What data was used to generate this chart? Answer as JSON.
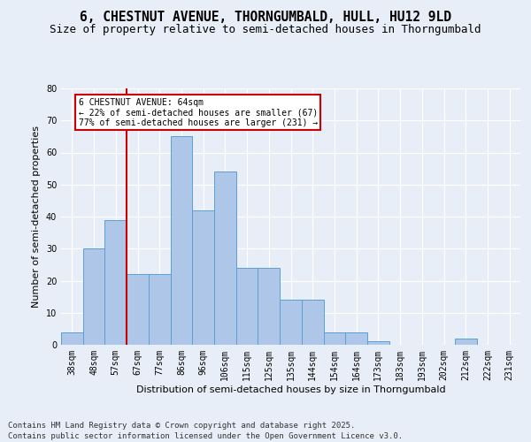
{
  "title": "6, CHESTNUT AVENUE, THORNGUMBALD, HULL, HU12 9LD",
  "subtitle": "Size of property relative to semi-detached houses in Thorngumbald",
  "xlabel": "Distribution of semi-detached houses by size in Thorngumbald",
  "ylabel": "Number of semi-detached properties",
  "categories": [
    "38sqm",
    "48sqm",
    "57sqm",
    "67sqm",
    "77sqm",
    "86sqm",
    "96sqm",
    "106sqm",
    "115sqm",
    "125sqm",
    "135sqm",
    "144sqm",
    "154sqm",
    "164sqm",
    "173sqm",
    "183sqm",
    "193sqm",
    "202sqm",
    "212sqm",
    "222sqm",
    "231sqm"
  ],
  "values": [
    4,
    30,
    39,
    22,
    22,
    65,
    42,
    54,
    24,
    24,
    14,
    14,
    4,
    4,
    1,
    0,
    0,
    0,
    2,
    0,
    0
  ],
  "bar_color": "#aec6e8",
  "bar_edge_color": "#5a9fd4",
  "vline_color": "#cc0000",
  "annotation_title": "6 CHESTNUT AVENUE: 64sqm",
  "annotation_line1": "← 22% of semi-detached houses are smaller (67)",
  "annotation_line2": "77% of semi-detached houses are larger (231) →",
  "annotation_box_color": "#cc0000",
  "ylim": [
    0,
    80
  ],
  "yticks": [
    0,
    10,
    20,
    30,
    40,
    50,
    60,
    70,
    80
  ],
  "bg_color": "#e8eef7",
  "plot_bg_color": "#e8eef7",
  "grid_color": "#ffffff",
  "footer_line1": "Contains HM Land Registry data © Crown copyright and database right 2025.",
  "footer_line2": "Contains public sector information licensed under the Open Government Licence v3.0.",
  "title_fontsize": 10.5,
  "subtitle_fontsize": 9,
  "axis_label_fontsize": 8,
  "tick_fontsize": 7,
  "footer_fontsize": 6.5
}
